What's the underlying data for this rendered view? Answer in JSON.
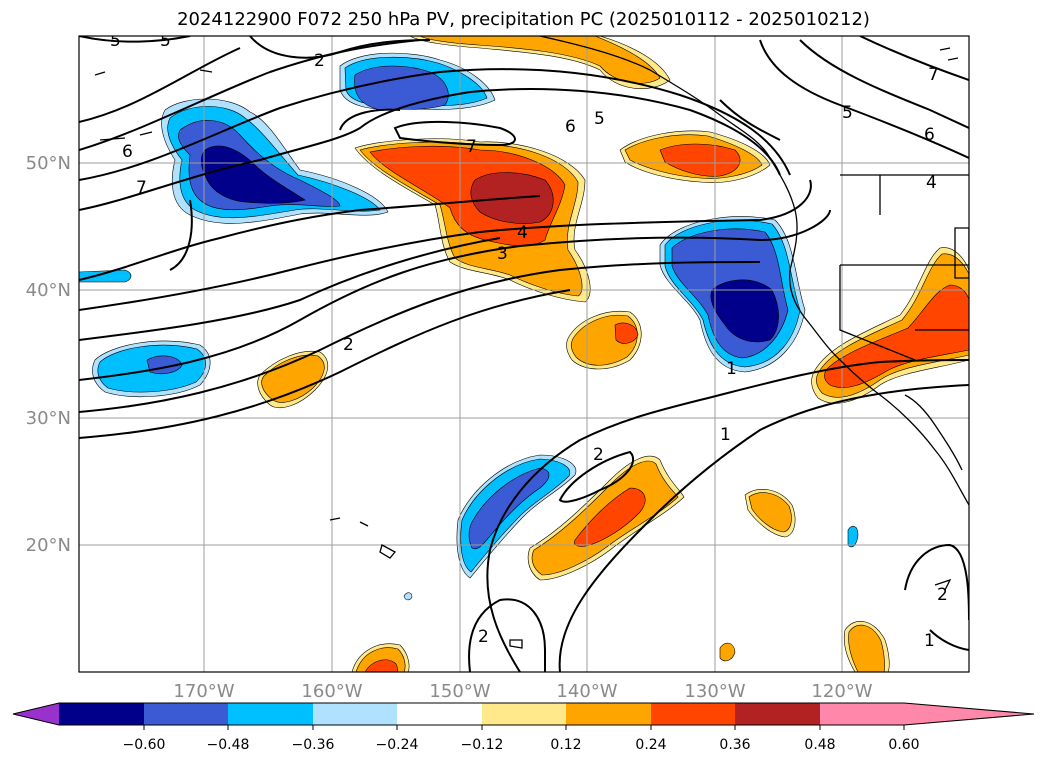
{
  "title": "2024122900 F072 250 hPa PV, precipitation PC (2025010112 - 2025010212)",
  "map": {
    "lon_ticks": [
      "170°W",
      "160°W",
      "150°W",
      "140°W",
      "130°W",
      "120°W"
    ],
    "lat_ticks": [
      "50°N",
      "40°N",
      "30°N",
      "20°N"
    ],
    "grid": true,
    "contour_labels": [
      "5",
      "5",
      "2",
      "6",
      "7",
      "5",
      "6",
      "7",
      "4",
      "3",
      "2",
      "2",
      "1",
      "2",
      "7",
      "6",
      "5",
      "4",
      "1",
      "2",
      "1"
    ]
  },
  "colorbar": {
    "ticks": [
      "−0.60",
      "−0.48",
      "−0.36",
      "−0.24",
      "−0.12",
      "0.12",
      "0.24",
      "0.36",
      "0.48",
      "0.60"
    ],
    "colors": [
      "#9932cc",
      "#00008b",
      "#3a5bd4",
      "#00bfff",
      "#b0e2ff",
      "#ffffff",
      "#ffe98a",
      "#ffa500",
      "#ff4500",
      "#b22222",
      "#ff88aa"
    ]
  }
}
